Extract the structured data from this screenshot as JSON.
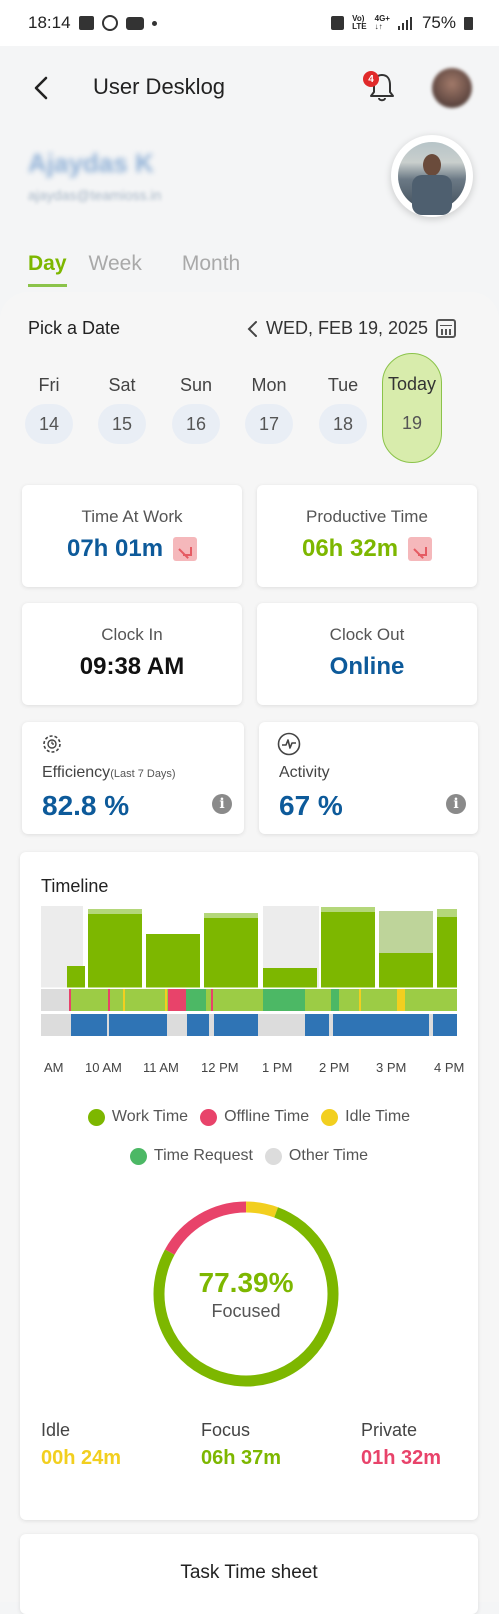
{
  "status_bar": {
    "time": "18:14",
    "battery": "75%",
    "network_top": "Vo)",
    "network_bottom": "LTE",
    "net2_top": "4G+",
    "net2_bottom": "↓↑"
  },
  "header": {
    "title": "User Desklog",
    "notification_count": "4"
  },
  "user": {
    "name": "Ajaydas K",
    "email": "ajaydas@teamioss.in"
  },
  "tabs": [
    {
      "label": "Day",
      "active": true
    },
    {
      "label": "Week",
      "active": false
    },
    {
      "label": "Month",
      "active": false
    }
  ],
  "date_picker": {
    "label": "Pick a Date",
    "current_date": "WED, FEB 19, 2025",
    "days": [
      {
        "name": "Fri",
        "num": "14"
      },
      {
        "name": "Sat",
        "num": "15"
      },
      {
        "name": "Sun",
        "num": "16"
      },
      {
        "name": "Mon",
        "num": "17"
      },
      {
        "name": "Tue",
        "num": "18"
      },
      {
        "name": "Today",
        "num": "19",
        "selected": true
      }
    ]
  },
  "summary": {
    "time_at_work": {
      "label": "Time At Work",
      "value": "07h 01m",
      "trend": "down"
    },
    "productive_time": {
      "label": "Productive Time",
      "value": "06h 32m",
      "trend": "down"
    },
    "clock_in": {
      "label": "Clock In",
      "value": "09:38 AM"
    },
    "clock_out": {
      "label": "Clock Out",
      "value": "Online"
    }
  },
  "metrics": {
    "efficiency": {
      "label": "Efficiency",
      "sublabel": "(Last 7 Days)",
      "value": "82.8 %",
      "icon": "gear-clock-icon"
    },
    "activity": {
      "label": "Activity",
      "value": "67 %",
      "icon": "pulse-icon"
    }
  },
  "timeline": {
    "title": "Timeline",
    "axis_labels": [
      "AM",
      "10 AM",
      "11 AM",
      "12 PM",
      "1 PM",
      "2 PM",
      "3 PM",
      "4 PM"
    ]
  },
  "legend": [
    {
      "label": "Work Time",
      "color": "#7db700"
    },
    {
      "label": "Offline Time",
      "color": "#e8436a"
    },
    {
      "label": "Idle Time",
      "color": "#f2cf1f"
    },
    {
      "label": "Time Request",
      "color": "#4cb865"
    },
    {
      "label": "Other Time",
      "color": "#dcdcdc"
    }
  ],
  "focus_chart": {
    "value": "77.39%",
    "label": "Focused",
    "segments": [
      {
        "name": "Focus",
        "fraction": 0.7739,
        "color": "#7db700"
      },
      {
        "name": "Private",
        "fraction": 0.17,
        "color": "#e8436a"
      },
      {
        "name": "Idle",
        "fraction": 0.0561,
        "color": "#f2cf1f"
      }
    ]
  },
  "time_breakdown": {
    "idle": {
      "label": "Idle",
      "value": "00h 24m",
      "color": "#f2cf1f"
    },
    "focus": {
      "label": "Focus",
      "value": "06h 37m",
      "color": "#7db700"
    },
    "private": {
      "label": "Private",
      "value": "01h 32m",
      "color": "#e8436a"
    }
  },
  "task_sheet": {
    "title": "Task Time sheet"
  },
  "colors": {
    "accent_green": "#7db700",
    "value_blue": "#0d5a9a",
    "today_bg": "#d8ecac"
  }
}
